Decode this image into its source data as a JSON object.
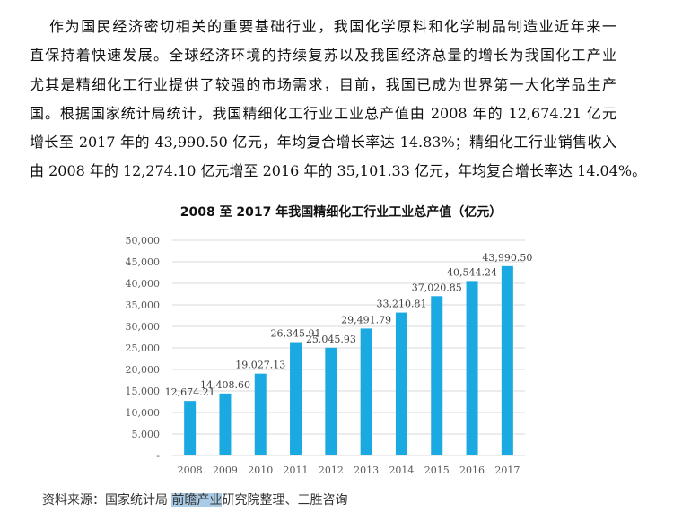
{
  "paragraph": {
    "lines": [
      "作为国民经济密切相关的重要基础行业，我国化学原料和化学制品制造业近年来一",
      "直保持着快速发展。全球经济环境的持续复苏以及我国经济总量的增长为我国化工产业",
      "尤其是精细化工行业提供了较强的市场需求，目前，我国已成为世界第一大化学品生产",
      "国。根据国家统计局统计，我国精细化工行业工业总产值由 2008 年的 12,674.21 亿元",
      "增长至 2017 年的 43,990.50 亿元，年均复合增长率达 14.83%；精细化工行业销售收入",
      "由 2008 年的 12,274.10 亿元增至 2016 年的 35,101.33 亿元，年均复合增长率达 14.04%。"
    ]
  },
  "chart_data": {
    "type": "bar",
    "title": "2008 至 2017 年我国精细化工行业工业总产值（亿元）",
    "categories": [
      "2008",
      "2009",
      "2010",
      "2011",
      "2012",
      "2013",
      "2014",
      "2015",
      "2016",
      "2017"
    ],
    "values": [
      12674.21,
      14408.6,
      19027.13,
      26345.91,
      25045.93,
      29491.79,
      33210.81,
      37020.85,
      40544.24,
      43990.5
    ],
    "data_labels": [
      "12,674.21",
      "14,408.60",
      "19,027.13",
      "26,345.91",
      "25,045.93",
      "29,491.79",
      "33,210.81",
      "37,020.85",
      "40,544.24",
      "43,990.50"
    ],
    "ylim": [
      0,
      50000
    ],
    "yticks": [
      0,
      5000,
      10000,
      15000,
      20000,
      25000,
      30000,
      35000,
      40000,
      45000,
      50000
    ],
    "ytick_labels": [
      "-",
      "5,000",
      "10,000",
      "15,000",
      "20,000",
      "25,000",
      "30,000",
      "35,000",
      "40,000",
      "45,000",
      "50,000"
    ],
    "grid": true,
    "bar_color": "#1aa9e1",
    "xlabel": "",
    "ylabel": ""
  },
  "source": {
    "prefix": "资料来源：国家统计局 ",
    "highlighted": "前瞻产业",
    "suffix": "研究院整理、三胜咨询"
  },
  "colors": {
    "highlight": "#a9cbe6",
    "bar": "#1aa9e1"
  }
}
